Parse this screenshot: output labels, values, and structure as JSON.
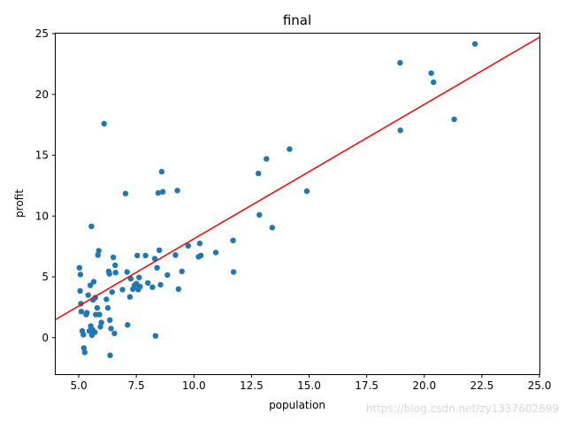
{
  "chart_data": {
    "type": "scatter",
    "title": "final",
    "xlabel": "population",
    "ylabel": "profit",
    "xlim": [
      4.0,
      25.0
    ],
    "ylim": [
      -3.0,
      25.0
    ],
    "xticks": [
      "5.0",
      "7.5",
      "10.0",
      "12.5",
      "15.0",
      "17.5",
      "20.0",
      "22.5",
      "25.0"
    ],
    "yticks": [
      "0",
      "5",
      "10",
      "15",
      "20",
      "25"
    ],
    "grid": false,
    "legend": "none",
    "point_color": "#1f77b4",
    "line_color": "#ff0000",
    "scatter": [
      {
        "x": 5.03,
        "y": 5.75
      },
      {
        "x": 5.06,
        "y": 3.85
      },
      {
        "x": 5.07,
        "y": 5.2
      },
      {
        "x": 5.09,
        "y": 2.8
      },
      {
        "x": 5.11,
        "y": 2.15
      },
      {
        "x": 5.15,
        "y": 0.55
      },
      {
        "x": 5.2,
        "y": 0.25
      },
      {
        "x": 5.22,
        "y": -0.85
      },
      {
        "x": 5.26,
        "y": -1.2
      },
      {
        "x": 5.32,
        "y": 1.9
      },
      {
        "x": 5.35,
        "y": 2.05
      },
      {
        "x": 5.41,
        "y": 3.5
      },
      {
        "x": 5.46,
        "y": 0.55
      },
      {
        "x": 5.5,
        "y": 4.3
      },
      {
        "x": 5.52,
        "y": 0.95
      },
      {
        "x": 5.55,
        "y": 9.15
      },
      {
        "x": 5.57,
        "y": 0.2
      },
      {
        "x": 5.6,
        "y": 0.65
      },
      {
        "x": 5.62,
        "y": 3.1
      },
      {
        "x": 5.65,
        "y": 4.6
      },
      {
        "x": 5.7,
        "y": 0.45
      },
      {
        "x": 5.72,
        "y": 3.3
      },
      {
        "x": 5.74,
        "y": 1.9
      },
      {
        "x": 5.8,
        "y": 2.45
      },
      {
        "x": 5.83,
        "y": 6.8
      },
      {
        "x": 5.87,
        "y": 7.15
      },
      {
        "x": 5.9,
        "y": 1.9
      },
      {
        "x": 5.94,
        "y": 0.9
      },
      {
        "x": 5.98,
        "y": 1.25
      },
      {
        "x": 6.1,
        "y": 17.6
      },
      {
        "x": 6.2,
        "y": 3.15
      },
      {
        "x": 6.26,
        "y": 2.45
      },
      {
        "x": 6.3,
        "y": 5.45
      },
      {
        "x": 6.33,
        "y": 5.25
      },
      {
        "x": 6.35,
        "y": 1.45
      },
      {
        "x": 6.36,
        "y": -1.45
      },
      {
        "x": 6.4,
        "y": 0.75
      },
      {
        "x": 6.45,
        "y": 3.75
      },
      {
        "x": 6.5,
        "y": 6.6
      },
      {
        "x": 6.55,
        "y": 0.35
      },
      {
        "x": 6.58,
        "y": 5.95
      },
      {
        "x": 6.6,
        "y": 5.35
      },
      {
        "x": 6.9,
        "y": 3.95
      },
      {
        "x": 7.03,
        "y": 11.85
      },
      {
        "x": 7.1,
        "y": 5.4
      },
      {
        "x": 7.12,
        "y": 1.05
      },
      {
        "x": 7.22,
        "y": 3.35
      },
      {
        "x": 7.26,
        "y": 4.85
      },
      {
        "x": 7.35,
        "y": 4.0
      },
      {
        "x": 7.42,
        "y": 4.3
      },
      {
        "x": 7.5,
        "y": 4.45
      },
      {
        "x": 7.54,
        "y": 6.75
      },
      {
        "x": 7.58,
        "y": 3.95
      },
      {
        "x": 7.62,
        "y": 4.95
      },
      {
        "x": 7.66,
        "y": 4.2
      },
      {
        "x": 7.9,
        "y": 6.75
      },
      {
        "x": 8.0,
        "y": 4.5
      },
      {
        "x": 8.2,
        "y": 4.15
      },
      {
        "x": 8.3,
        "y": 6.5
      },
      {
        "x": 8.33,
        "y": 0.15
      },
      {
        "x": 8.4,
        "y": 5.75
      },
      {
        "x": 8.45,
        "y": 11.9
      },
      {
        "x": 8.5,
        "y": 7.2
      },
      {
        "x": 8.55,
        "y": 4.35
      },
      {
        "x": 8.6,
        "y": 13.65
      },
      {
        "x": 8.65,
        "y": 12.0
      },
      {
        "x": 8.85,
        "y": 5.15
      },
      {
        "x": 9.2,
        "y": 6.8
      },
      {
        "x": 9.28,
        "y": 12.1
      },
      {
        "x": 9.33,
        "y": 4.0
      },
      {
        "x": 9.48,
        "y": 5.45
      },
      {
        "x": 9.75,
        "y": 7.55
      },
      {
        "x": 10.2,
        "y": 6.65
      },
      {
        "x": 10.25,
        "y": 7.75
      },
      {
        "x": 10.3,
        "y": 6.75
      },
      {
        "x": 10.95,
        "y": 7.0
      },
      {
        "x": 11.7,
        "y": 8.0
      },
      {
        "x": 11.72,
        "y": 5.4
      },
      {
        "x": 12.8,
        "y": 13.5
      },
      {
        "x": 12.84,
        "y": 10.1
      },
      {
        "x": 13.15,
        "y": 14.7
      },
      {
        "x": 13.4,
        "y": 9.05
      },
      {
        "x": 14.15,
        "y": 15.5
      },
      {
        "x": 14.9,
        "y": 12.05
      },
      {
        "x": 18.95,
        "y": 22.6
      },
      {
        "x": 18.96,
        "y": 17.05
      },
      {
        "x": 20.3,
        "y": 21.75
      },
      {
        "x": 20.4,
        "y": 21.0
      },
      {
        "x": 21.3,
        "y": 17.95
      },
      {
        "x": 22.2,
        "y": 24.15
      }
    ],
    "fit_line": [
      {
        "x": 4.0,
        "y": 1.5
      },
      {
        "x": 25.0,
        "y": 24.7
      }
    ]
  },
  "watermark": "https://blog.csdn.net/zy1337602899"
}
